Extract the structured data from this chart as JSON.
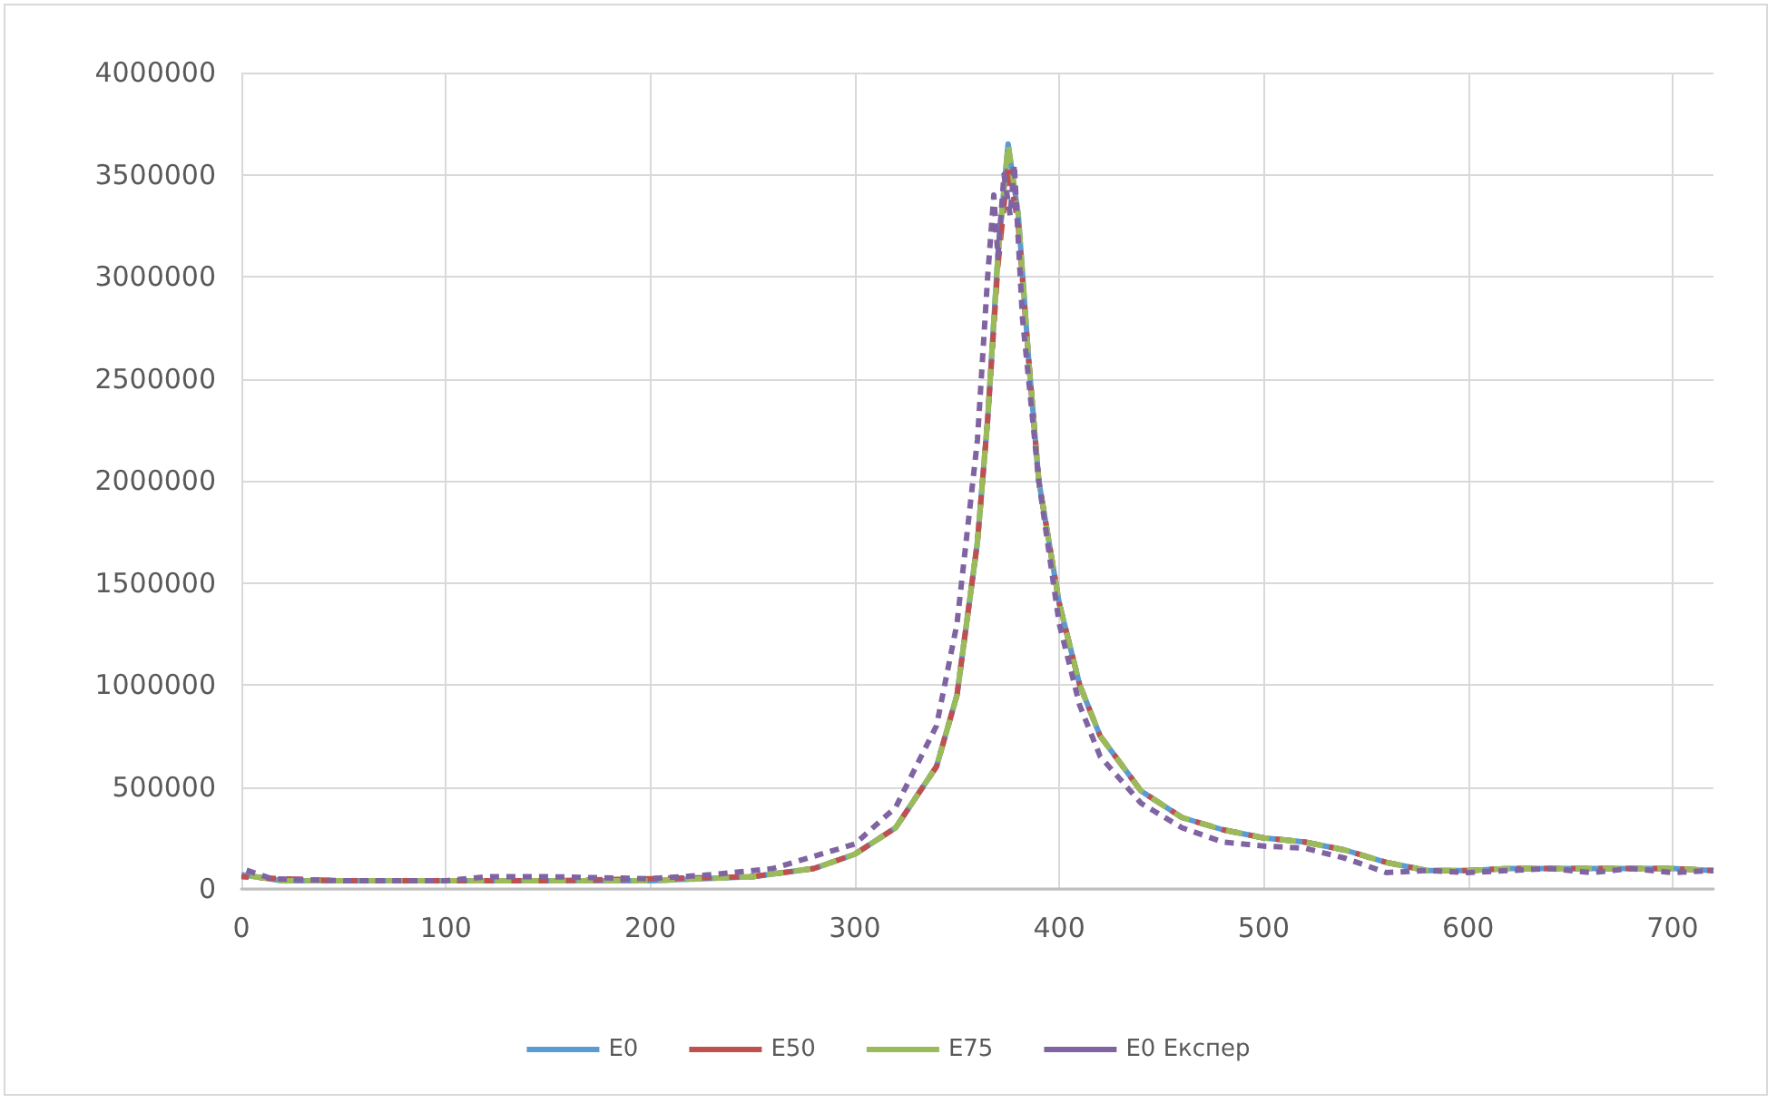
{
  "chart_data": {
    "type": "line",
    "xlim": [
      0,
      720
    ],
    "xticks": [
      0,
      100,
      200,
      300,
      400,
      500,
      600,
      700
    ],
    "ylim": [
      0,
      4000000
    ],
    "yticks": [
      0,
      500000,
      1000000,
      1500000,
      2000000,
      2500000,
      3000000,
      3500000,
      4000000
    ],
    "grid": true,
    "legend": "bottom",
    "marker": "none",
    "x": [
      0,
      20,
      50,
      100,
      150,
      200,
      250,
      280,
      300,
      320,
      340,
      350,
      360,
      365,
      370,
      375,
      380,
      385,
      390,
      400,
      410,
      420,
      440,
      460,
      480,
      500,
      520,
      540,
      560,
      580,
      600,
      620,
      650,
      680,
      700,
      720
    ],
    "series": [
      {
        "name": "E0",
        "color": "#5b9bd5",
        "line_style": "solid",
        "values": [
          70000,
          40000,
          40000,
          40000,
          40000,
          40000,
          60000,
          100000,
          170000,
          300000,
          600000,
          950000,
          1700000,
          2300000,
          3100000,
          3650000,
          3300000,
          2600000,
          2000000,
          1400000,
          1000000,
          750000,
          480000,
          350000,
          290000,
          250000,
          230000,
          190000,
          130000,
          90000,
          90000,
          100000,
          100000,
          100000,
          100000,
          90000
        ]
      },
      {
        "name": "E50",
        "color": "#c0504d",
        "line_style": "dashed",
        "values": [
          60000,
          50000,
          40000,
          40000,
          40000,
          50000,
          60000,
          100000,
          170000,
          300000,
          600000,
          950000,
          1700000,
          2300000,
          3050000,
          3550000,
          3250000,
          2600000,
          2000000,
          1400000,
          1000000,
          750000,
          480000,
          350000,
          290000,
          250000,
          230000,
          190000,
          130000,
          90000,
          90000,
          100000,
          100000,
          100000,
          100000,
          90000
        ]
      },
      {
        "name": "E75",
        "color": "#9bbb59",
        "line_style": "dashed",
        "values": [
          70000,
          40000,
          40000,
          40000,
          40000,
          40000,
          60000,
          100000,
          170000,
          300000,
          600000,
          950000,
          1700000,
          2300000,
          3100000,
          3650000,
          3300000,
          2600000,
          2000000,
          1400000,
          1000000,
          750000,
          480000,
          350000,
          290000,
          250000,
          230000,
          190000,
          130000,
          90000,
          90000,
          100000,
          100000,
          100000,
          100000,
          90000
        ]
      },
      {
        "name": "E0 Експер",
        "color": "#8064a2",
        "line_style": "dotted",
        "x": [
          0,
          15,
          50,
          100,
          120,
          150,
          200,
          230,
          260,
          300,
          320,
          340,
          350,
          360,
          365,
          368,
          370,
          373,
          376,
          378,
          382,
          390,
          400,
          410,
          420,
          440,
          460,
          480,
          500,
          520,
          540,
          560,
          580,
          600,
          620,
          640,
          660,
          680,
          700,
          720
        ],
        "values": [
          100000,
          50000,
          40000,
          40000,
          60000,
          60000,
          50000,
          70000,
          100000,
          220000,
          400000,
          800000,
          1300000,
          2200000,
          3000000,
          3400000,
          3100000,
          3500000,
          3300000,
          3550000,
          2800000,
          2000000,
          1300000,
          900000,
          650000,
          420000,
          300000,
          230000,
          210000,
          200000,
          150000,
          80000,
          90000,
          80000,
          90000,
          100000,
          80000,
          100000,
          80000,
          90000
        ]
      }
    ]
  }
}
